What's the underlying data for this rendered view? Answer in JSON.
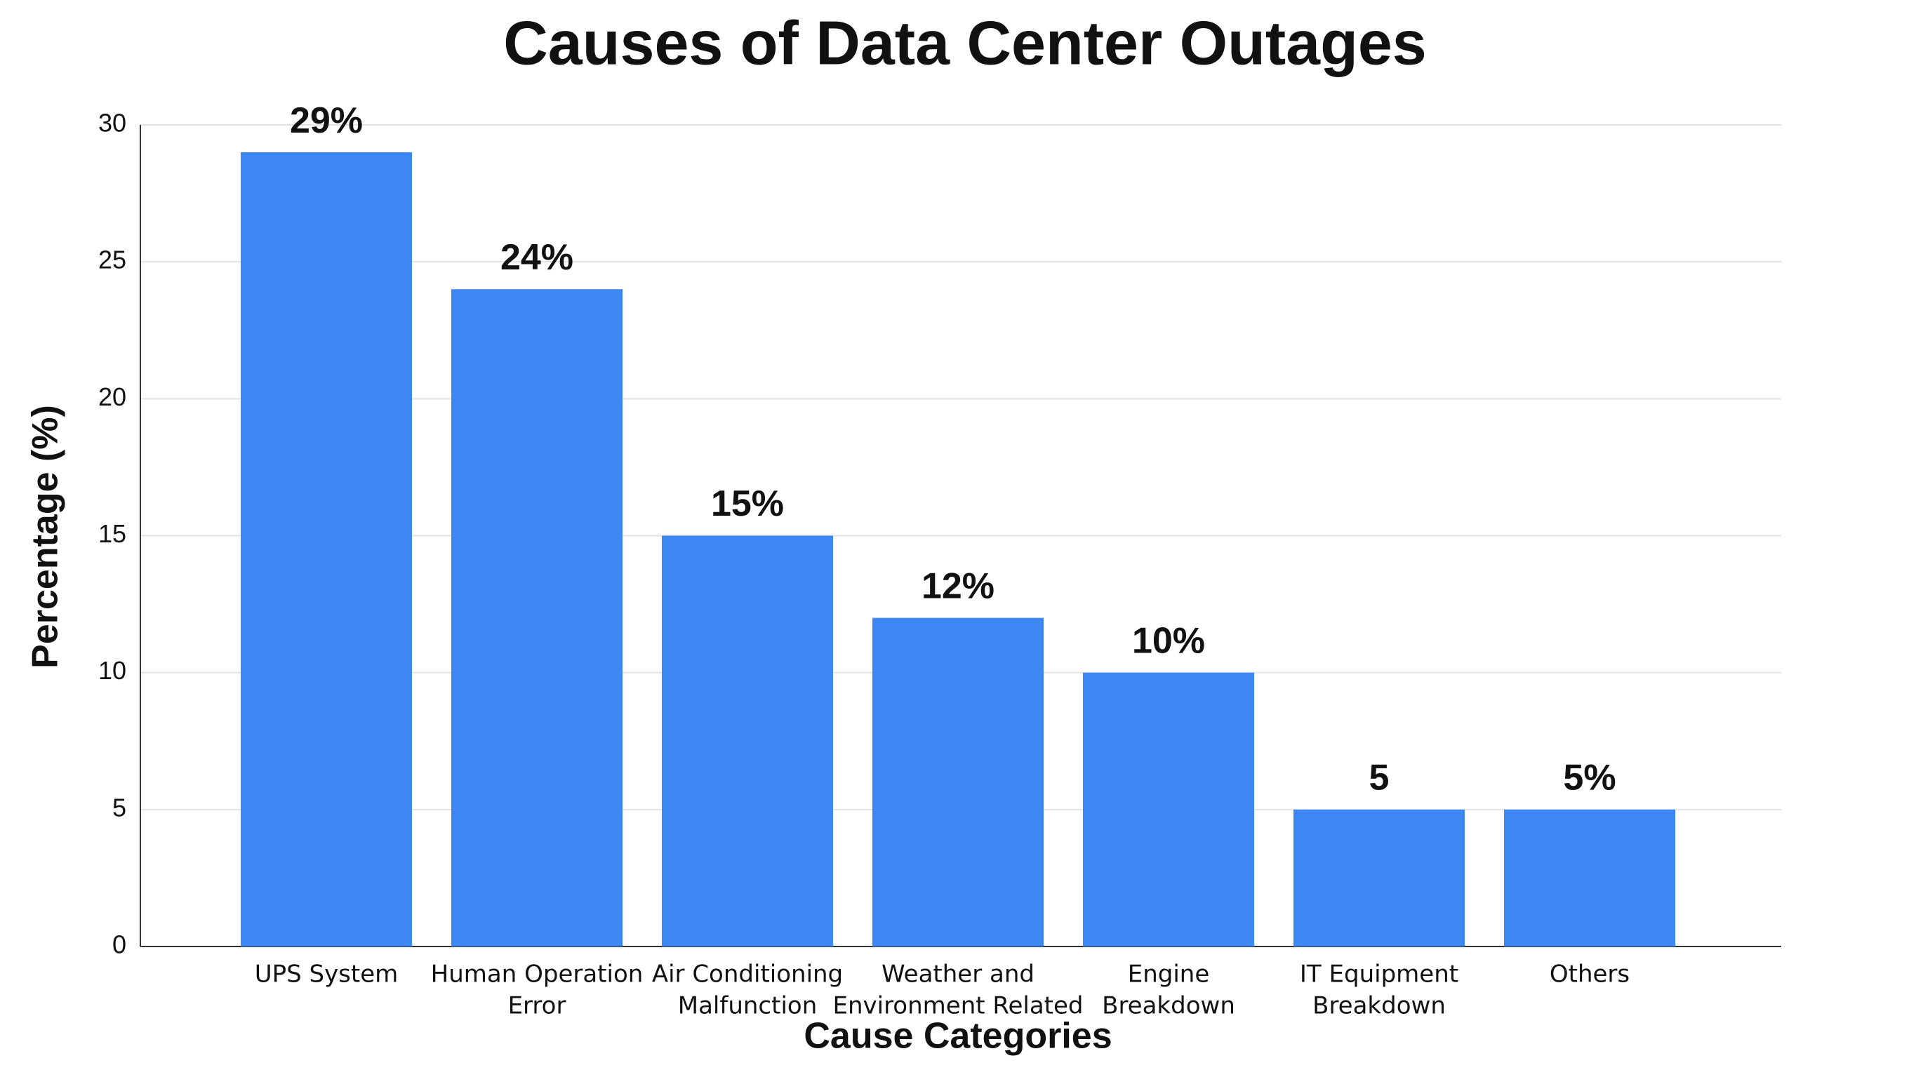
{
  "chart_data": {
    "type": "bar",
    "title": "Causes of Data Center Outages",
    "x_label": "Cause Categories",
    "y_label": "Percentage (%)",
    "categories": [
      [
        "UPS System"
      ],
      [
        "Human Operation",
        "Error"
      ],
      [
        "Air Conditioning",
        "Malfunction"
      ],
      [
        "Weather and",
        "Environment Related"
      ],
      [
        "Engine",
        "Breakdown"
      ],
      [
        "IT Equipment",
        "Breakdown"
      ],
      [
        "Others"
      ]
    ],
    "values": [
      29,
      24,
      15,
      12,
      10,
      5,
      5
    ],
    "value_labels": [
      "29%",
      "24%",
      "15%",
      "12%",
      "10%",
      "5",
      "5%"
    ],
    "color": "#3d87f5",
    "ylim": [
      0,
      30
    ],
    "yticks": [
      0,
      5,
      10,
      15,
      20,
      25,
      30
    ],
    "grid": true
  }
}
